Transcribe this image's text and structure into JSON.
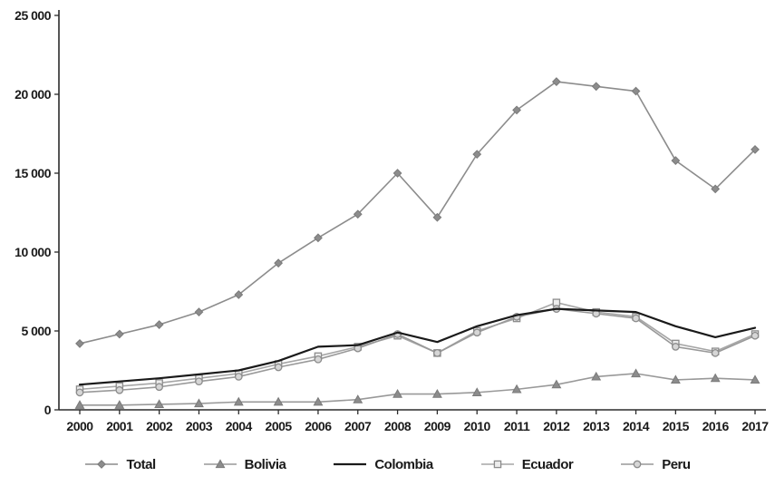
{
  "chart_data": {
    "type": "line",
    "title": "",
    "xlabel": "",
    "ylabel": "",
    "grid": false,
    "legend_position": "bottom",
    "ylim": [
      0,
      25000
    ],
    "y_ticks": [
      0,
      5000,
      10000,
      15000,
      20000,
      25000
    ],
    "y_tick_labels": [
      "0",
      "5 000",
      "10 000",
      "15 000",
      "20 000",
      "25 000"
    ],
    "x": [
      2000,
      2001,
      2002,
      2003,
      2004,
      2005,
      2006,
      2007,
      2008,
      2009,
      2010,
      2011,
      2012,
      2013,
      2014,
      2015,
      2016,
      2017
    ],
    "series": [
      {
        "name": "Total",
        "marker": "diamond",
        "color": "#8c8c8c",
        "marker_fill": "#8c8c8c",
        "marker_stroke": "#7a7a7a",
        "line_width": 1.6,
        "values": [
          4200,
          4800,
          5400,
          6200,
          7300,
          9300,
          10900,
          12400,
          15000,
          12200,
          16200,
          19000,
          20800,
          20500,
          20200,
          15800,
          14000,
          16500
        ]
      },
      {
        "name": "Bolivia",
        "marker": "triangle",
        "color": "#999999",
        "marker_fill": "#8c8c8c",
        "marker_stroke": "#7a7a7a",
        "line_width": 1.6,
        "values": [
          300,
          300,
          350,
          400,
          500,
          500,
          500,
          650,
          1000,
          1000,
          1100,
          1300,
          1600,
          2100,
          2300,
          1900,
          2000,
          1900
        ]
      },
      {
        "name": "Colombia",
        "marker": "none",
        "color": "#1a1a1a",
        "marker_fill": "#1a1a1a",
        "marker_stroke": "#1a1a1a",
        "line_width": 2.2,
        "values": [
          1600,
          1800,
          2000,
          2250,
          2500,
          3100,
          4000,
          4100,
          4900,
          4300,
          5300,
          6000,
          6400,
          6300,
          6200,
          5300,
          4600,
          5200
        ]
      },
      {
        "name": "Ecuador",
        "marker": "square",
        "color": "#a6a6a6",
        "marker_fill": "#ececec",
        "marker_stroke": "#8c8c8c",
        "line_width": 1.6,
        "values": [
          1300,
          1500,
          1700,
          2000,
          2300,
          2900,
          3400,
          4000,
          4700,
          3600,
          5000,
          5800,
          6800,
          6200,
          5900,
          4200,
          3700,
          4800
        ]
      },
      {
        "name": "Peru",
        "marker": "circle",
        "color": "#999999",
        "marker_fill": "#d6d6d6",
        "marker_stroke": "#8c8c8c",
        "line_width": 1.6,
        "values": [
          1100,
          1250,
          1450,
          1800,
          2100,
          2700,
          3200,
          3900,
          4800,
          3600,
          4900,
          5900,
          6400,
          6100,
          5800,
          4000,
          3600,
          4700
        ]
      }
    ]
  }
}
